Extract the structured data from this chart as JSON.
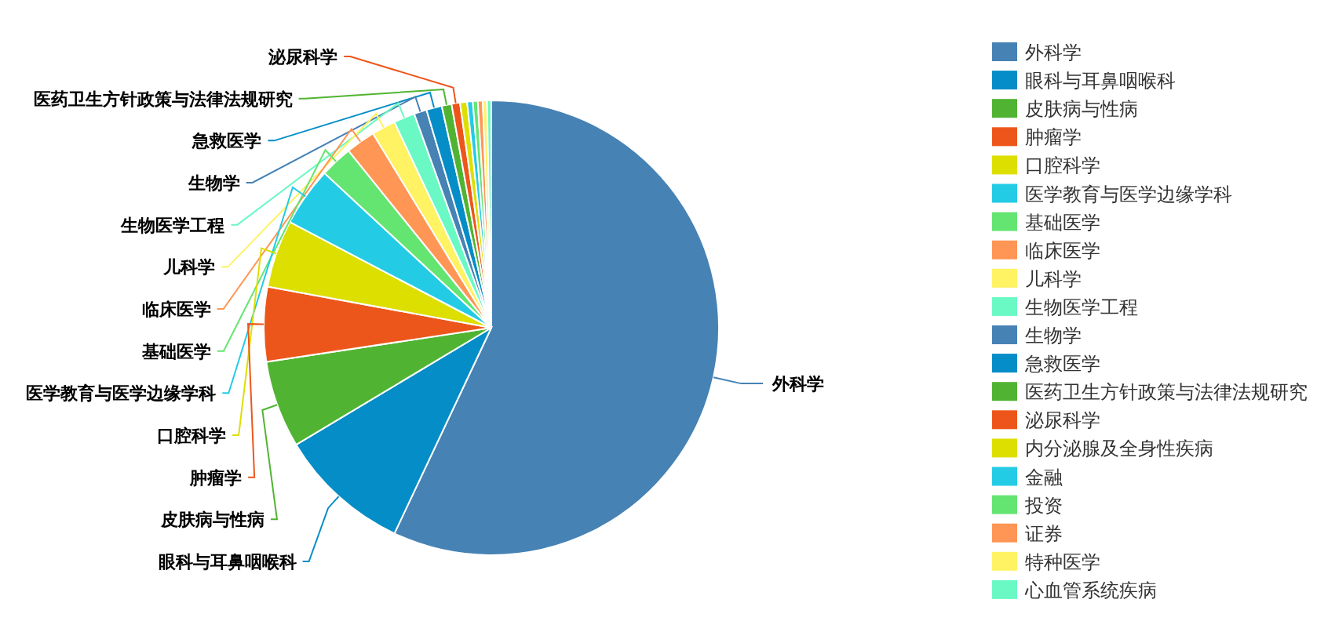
{
  "chart_data": {
    "type": "pie",
    "categories": [
      "外科学",
      "眼科与耳鼻咽喉科",
      "皮肤病与性病",
      "肿瘤学",
      "口腔科学",
      "医学教育与医学边缘学科",
      "基础医学",
      "临床医学",
      "儿科学",
      "生物医学工程",
      "生物学",
      "急救医学",
      "医药卫生方针政策与法律法规研究",
      "泌尿科学",
      "内分泌腺及全身性疾病",
      "金融",
      "投资",
      "证券",
      "特种医学",
      "心血管系统疾病"
    ],
    "values": [
      57.0,
      9.4,
      6.2,
      5.3,
      4.8,
      4.2,
      2.3,
      2.1,
      1.7,
      1.5,
      0.9,
      1.1,
      0.7,
      0.6,
      0.5,
      0.4,
      0.35,
      0.35,
      0.3,
      0.3
    ],
    "colors": [
      "#4682b4",
      "#058dc7",
      "#50b432",
      "#ed561b",
      "#dddf00",
      "#24cbe5",
      "#64e572",
      "#ff9655",
      "#fff263",
      "#6af9c4",
      "#4682b4",
      "#058dc7",
      "#50b432",
      "#ed561b",
      "#dddf00",
      "#24cbe5",
      "#64e572",
      "#ff9655",
      "#fff263",
      "#6af9c4"
    ],
    "legend": "right"
  }
}
